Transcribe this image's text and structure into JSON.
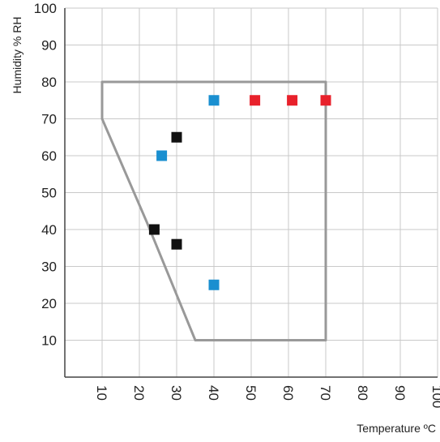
{
  "chart_data": {
    "type": "scatter",
    "title": "",
    "xlabel": "Temperature ºC",
    "ylabel": "Humidity % RH",
    "xlim": [
      0,
      100
    ],
    "ylim": [
      0,
      100
    ],
    "x_ticks": [
      10,
      20,
      30,
      40,
      50,
      60,
      70,
      80,
      90,
      100
    ],
    "y_ticks": [
      10,
      20,
      30,
      40,
      50,
      60,
      70,
      80,
      90,
      100
    ],
    "grid": true,
    "region_outline": {
      "color": "#999999",
      "points": [
        [
          10,
          80
        ],
        [
          70,
          80
        ],
        [
          70,
          10
        ],
        [
          35,
          10
        ],
        [
          22,
          42
        ],
        [
          10,
          70
        ]
      ]
    },
    "series": [
      {
        "color": "#1a8fd0",
        "x": [
          40,
          26,
          40
        ],
        "y": [
          75,
          60,
          25
        ]
      },
      {
        "color": "#e8212b",
        "x": [
          51,
          61,
          70
        ],
        "y": [
          75,
          75,
          75
        ]
      },
      {
        "color": "#111111",
        "x": [
          30,
          24,
          30
        ],
        "y": [
          65,
          40,
          36
        ]
      }
    ]
  }
}
